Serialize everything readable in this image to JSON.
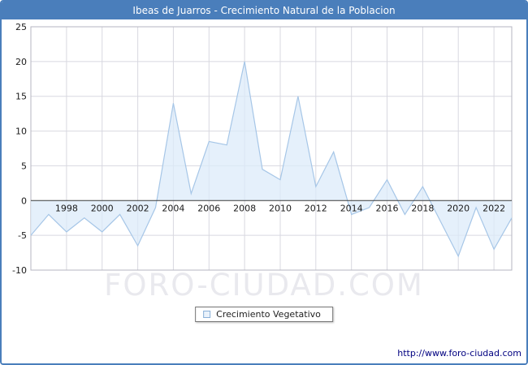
{
  "window": {
    "title": "Ibeas de Juarros - Crecimiento Natural de la Poblacion",
    "titlebar_color": "#4a7ebb",
    "border_color": "#4a7ebb"
  },
  "chart_data": {
    "type": "area",
    "title": "Ibeas de Juarros - Crecimiento Natural de la Poblacion",
    "series_name": "Crecimiento Vegetativo",
    "x": [
      1996,
      1997,
      1998,
      1999,
      2000,
      2001,
      2002,
      2003,
      2004,
      2005,
      2006,
      2007,
      2008,
      2009,
      2010,
      2011,
      2012,
      2013,
      2014,
      2015,
      2016,
      2017,
      2018,
      2019,
      2020,
      2021,
      2022,
      2023
    ],
    "values": [
      -5,
      -2,
      -4.5,
      -2.5,
      -4.5,
      -2,
      -6.5,
      -1,
      14,
      1,
      8.5,
      8,
      20,
      4.5,
      3,
      15,
      2,
      7,
      -2,
      -1,
      3,
      -2,
      2,
      -3,
      -8,
      -1,
      -7,
      -2.5
    ],
    "ylim": [
      -10,
      25
    ],
    "ytick_step": 5,
    "yticks": [
      -10,
      -5,
      0,
      5,
      10,
      15,
      20,
      25
    ],
    "xticks": [
      1998,
      2000,
      2002,
      2004,
      2006,
      2008,
      2010,
      2012,
      2014,
      2016,
      2018,
      2020,
      2022
    ],
    "grid": true,
    "baseline": 0,
    "legend_position": "bottom",
    "line_color": "#a6c6e7",
    "fill_color": "#dcebfa",
    "grid_color": "#d8d8e0",
    "axis_color": "#3a3a3a",
    "plot_border_color": "#b6b6c0"
  },
  "legend": {
    "label": "Crecimiento Vegetativo"
  },
  "watermark": {
    "text": "FORO-CIUDAD.COM"
  },
  "footer": {
    "link_text": "http://www.foro-ciudad.com"
  }
}
